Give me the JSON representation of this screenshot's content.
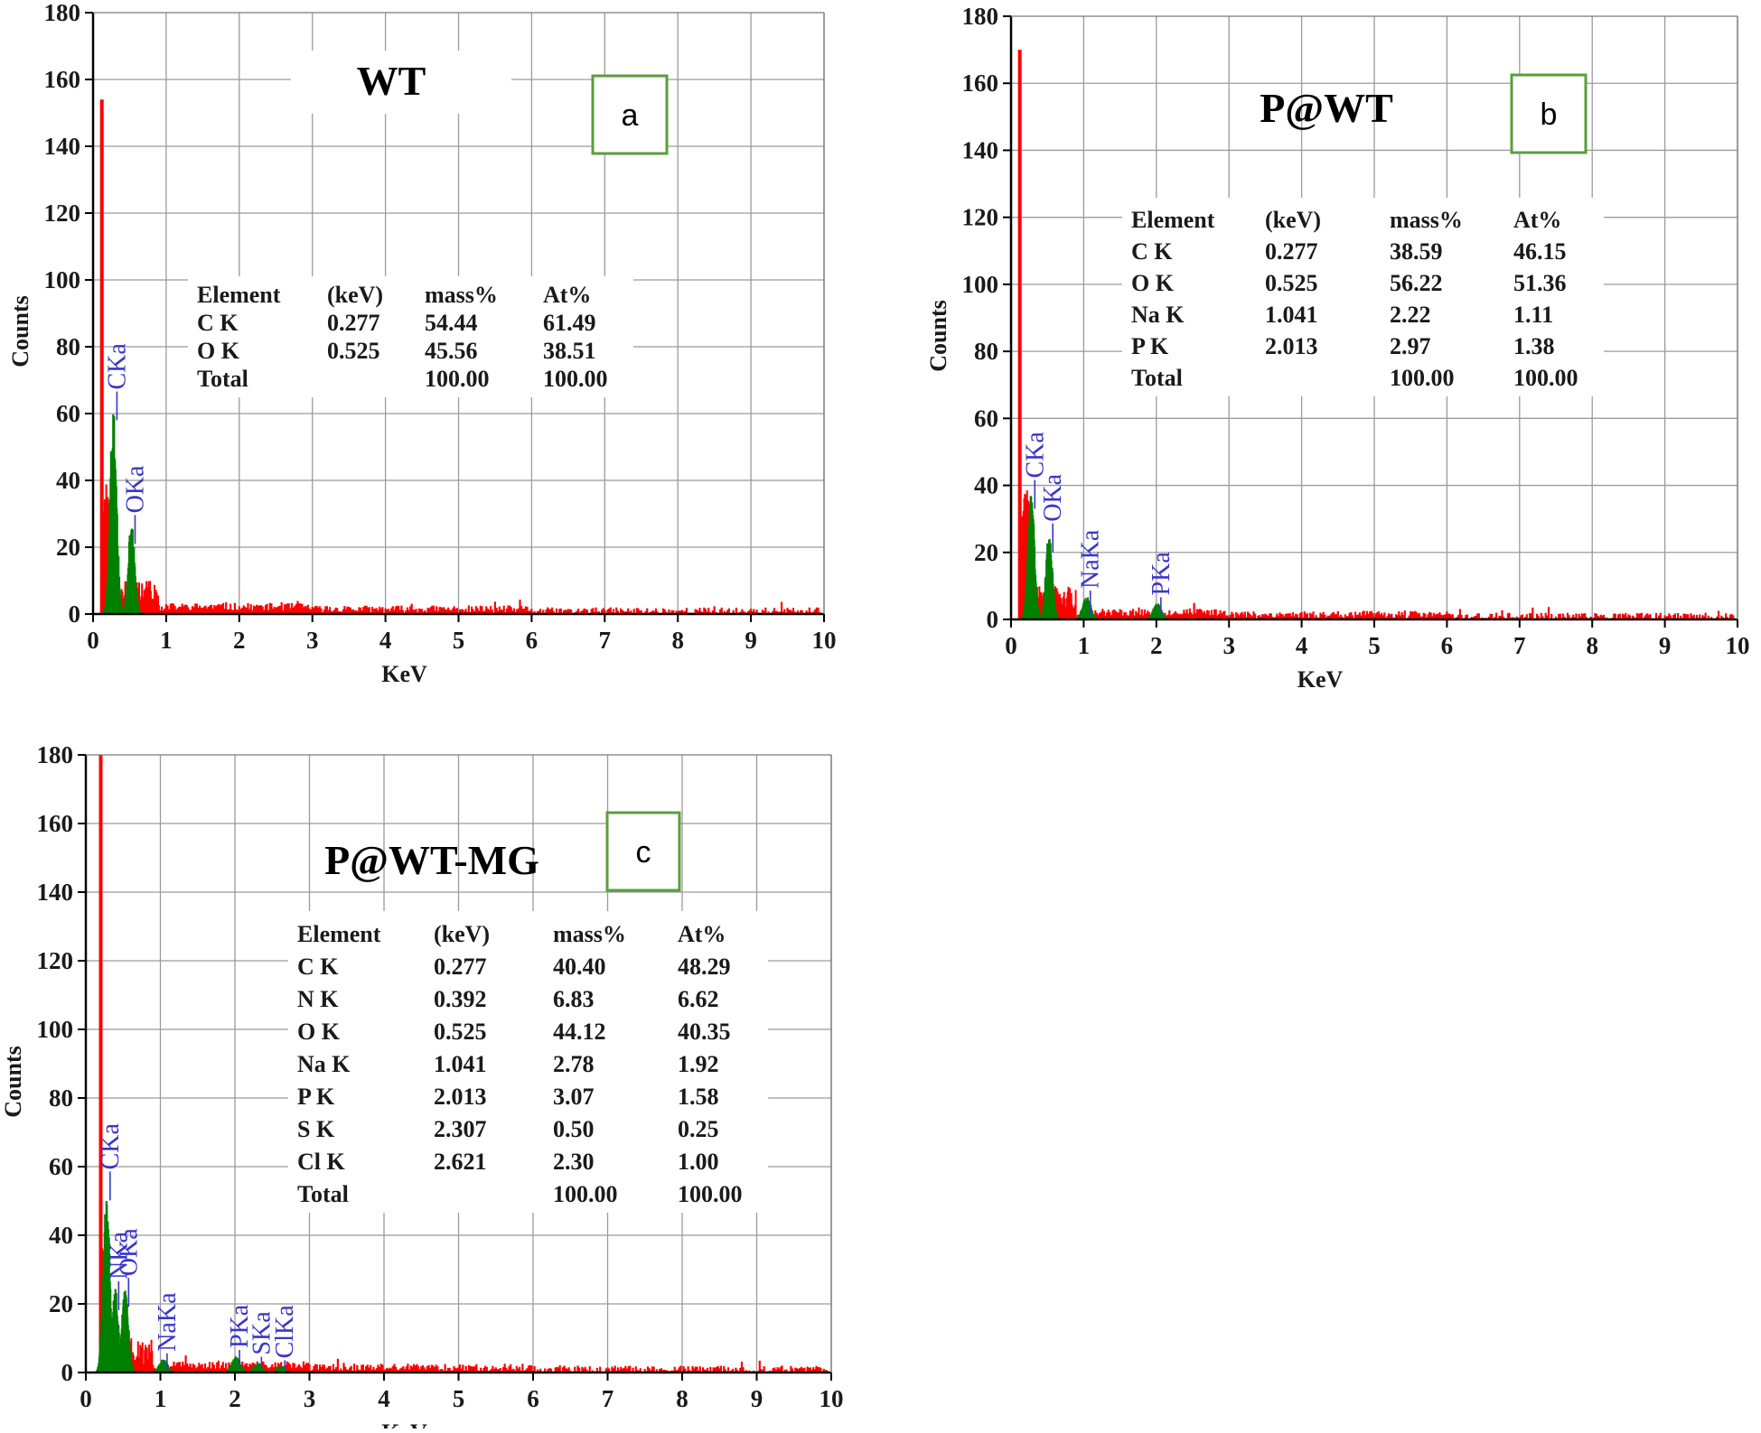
{
  "chart_data": [
    {
      "type": "bar",
      "panel": "a",
      "title": "WT",
      "xlabel": "KeV",
      "ylabel": "Counts",
      "xlim": [
        0,
        10
      ],
      "ylim": [
        0,
        180
      ],
      "x_ticks": [
        "0",
        "1",
        "2",
        "3",
        "4",
        "5",
        "6",
        "7",
        "8",
        "9",
        "10"
      ],
      "y_ticks": [
        "0",
        "20",
        "40",
        "60",
        "80",
        "100",
        "120",
        "140",
        "160",
        "180"
      ],
      "grid": true,
      "spectrum": {
        "color_main": "#ff0000",
        "color_peaks": "#008000",
        "peak_start_keV": 0.12,
        "peak_start_counts": 154,
        "max_keV": 9.95,
        "max_background_counts": 3
      },
      "peaks": [
        {
          "label": "CKa",
          "keV": 0.277,
          "counts": 65
        },
        {
          "label": "OKa",
          "keV": 0.525,
          "counts": 28
        }
      ],
      "table": {
        "headers": [
          "Element",
          "(keV)",
          "mass%",
          "At%"
        ],
        "rows": [
          [
            "C K",
            "0.277",
            "54.44",
            "61.49"
          ],
          [
            "O K",
            "0.525",
            "45.56",
            "38.51"
          ],
          [
            "Total",
            "",
            "100.00",
            "100.00"
          ]
        ]
      }
    },
    {
      "type": "bar",
      "panel": "b",
      "title": "P@WT",
      "xlabel": "KeV",
      "ylabel": "Counts",
      "xlim": [
        0,
        10
      ],
      "ylim": [
        0,
        180
      ],
      "x_ticks": [
        "0",
        "1",
        "2",
        "3",
        "4",
        "5",
        "6",
        "7",
        "8",
        "9",
        "10"
      ],
      "y_ticks": [
        "0",
        "20",
        "40",
        "60",
        "80",
        "100",
        "120",
        "140",
        "160",
        "180"
      ],
      "grid": true,
      "spectrum": {
        "color_main": "#ff0000",
        "color_peaks": "#008000",
        "peak_start_keV": 0.12,
        "peak_start_counts": 170,
        "max_keV": 9.95,
        "max_background_counts": 3
      },
      "peaks": [
        {
          "label": "CKa",
          "keV": 0.277,
          "counts": 40
        },
        {
          "label": "OKa",
          "keV": 0.525,
          "counts": 27
        },
        {
          "label": "NaKa",
          "keV": 1.041,
          "counts": 7
        },
        {
          "label": "PKa",
          "keV": 2.013,
          "counts": 5
        }
      ],
      "table": {
        "headers": [
          "Element",
          "(keV)",
          "mass%",
          "At%"
        ],
        "rows": [
          [
            "C K",
            "0.277",
            "38.59",
            "46.15"
          ],
          [
            "O K",
            "0.525",
            "56.22",
            "51.36"
          ],
          [
            "Na K",
            "1.041",
            "2.22",
            "1.11"
          ],
          [
            "P K",
            "2.013",
            "2.97",
            "1.38"
          ],
          [
            "Total",
            "",
            "100.00",
            "100.00"
          ]
        ]
      }
    },
    {
      "type": "bar",
      "panel": "c",
      "title": "P@WT-MG",
      "xlabel": "KeV",
      "ylabel": "Counts",
      "xlim": [
        0,
        10
      ],
      "ylim": [
        0,
        180
      ],
      "x_ticks": [
        "0",
        "1",
        "2",
        "3",
        "4",
        "5",
        "6",
        "7",
        "8",
        "9",
        "10"
      ],
      "y_ticks": [
        "0",
        "20",
        "40",
        "60",
        "80",
        "100",
        "120",
        "140",
        "160",
        "180"
      ],
      "grid": true,
      "spectrum": {
        "color_main": "#ff0000",
        "color_peaks": "#008000",
        "peak_start_keV": 0.2,
        "peak_start_counts": 180,
        "max_keV": 9.95,
        "max_background_counts": 3
      },
      "peaks": [
        {
          "label": "CKa",
          "keV": 0.277,
          "counts": 57
        },
        {
          "label": "NKa",
          "keV": 0.392,
          "counts": 25
        },
        {
          "label": "OKa",
          "keV": 0.525,
          "counts": 26
        },
        {
          "label": "NaKa",
          "keV": 1.041,
          "counts": 4
        },
        {
          "label": "PKa",
          "keV": 2.013,
          "counts": 5
        },
        {
          "label": "SKa",
          "keV": 2.307,
          "counts": 3
        },
        {
          "label": "ClKa",
          "keV": 2.621,
          "counts": 2
        }
      ],
      "table": {
        "headers": [
          "Element",
          "(keV)",
          "mass%",
          "At%"
        ],
        "rows": [
          [
            "C K",
            "0.277",
            "40.40",
            "48.29"
          ],
          [
            "N K",
            "0.392",
            "6.83",
            "6.62"
          ],
          [
            "O K",
            "0.525",
            "44.12",
            "40.35"
          ],
          [
            "Na K",
            "1.041",
            "2.78",
            "1.92"
          ],
          [
            "P K",
            "2.013",
            "3.07",
            "1.58"
          ],
          [
            "S K",
            "2.307",
            "0.50",
            "0.25"
          ],
          [
            "Cl K",
            "2.621",
            "2.30",
            "1.00"
          ],
          [
            "Total",
            "",
            "100.00",
            "100.00"
          ]
        ]
      }
    }
  ]
}
